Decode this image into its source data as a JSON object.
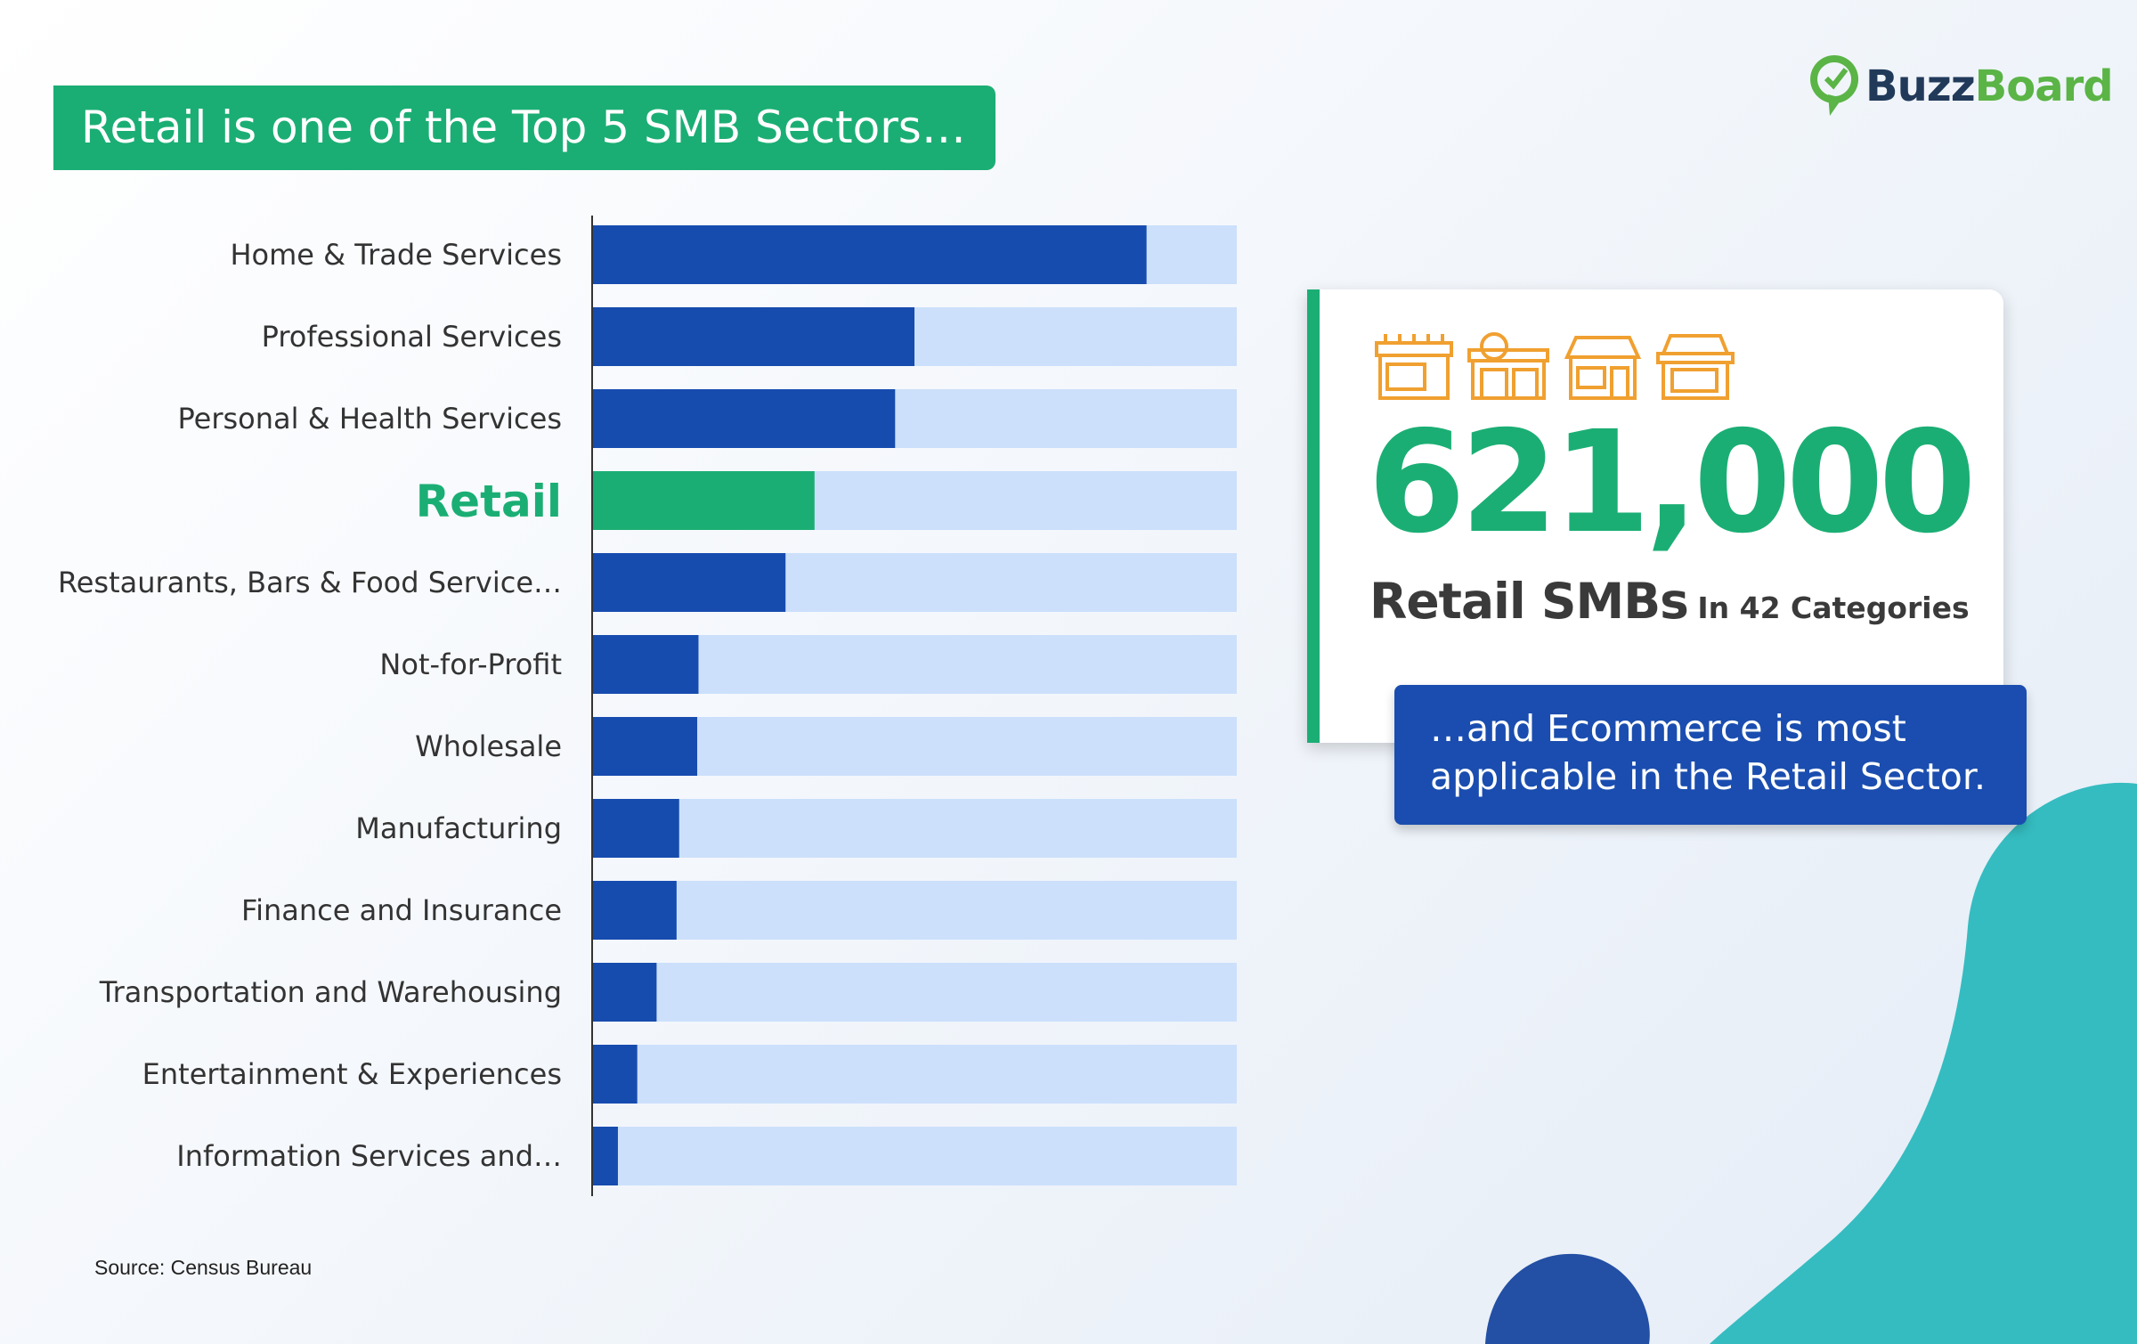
{
  "header": {
    "title": "Retail is one of the Top 5 SMB Sectors…"
  },
  "logo": {
    "part1": "Buzz",
    "part2": "Board"
  },
  "source": "Source: Census Bureau",
  "colors": {
    "bar": "#174caf",
    "highlight": "#1bae74",
    "track": "#cce0fb",
    "accent_teal": "#35bcc0"
  },
  "chart_data": {
    "type": "bar",
    "orientation": "horizontal",
    "categories": [
      "Home & Trade Services",
      "Professional Services",
      "Personal & Health Services",
      "Retail",
      "Restaurants, Bars & Food Service…",
      "Not-for-Profit",
      "Wholesale",
      "Manufacturing",
      "Finance and Insurance",
      "Transportation and Warehousing",
      "Entertainment & Experiences",
      "Information Services and…"
    ],
    "values": [
      86,
      50,
      47,
      34.5,
      30,
      16.5,
      16.3,
      13.5,
      13.1,
      10,
      7,
      4
    ],
    "xlim": [
      0,
      100
    ],
    "highlight": "Retail",
    "grid": false
  },
  "stat_card": {
    "number": "621,000",
    "label": "Retail SMBs",
    "sublabel": "In 42 Categories",
    "icons": [
      "storefront-icon-1",
      "storefront-icon-2",
      "storefront-icon-3",
      "storefront-icon-4"
    ]
  },
  "callout": {
    "line1": "…and Ecommerce is most",
    "line2": "applicable in the Retail Sector."
  }
}
